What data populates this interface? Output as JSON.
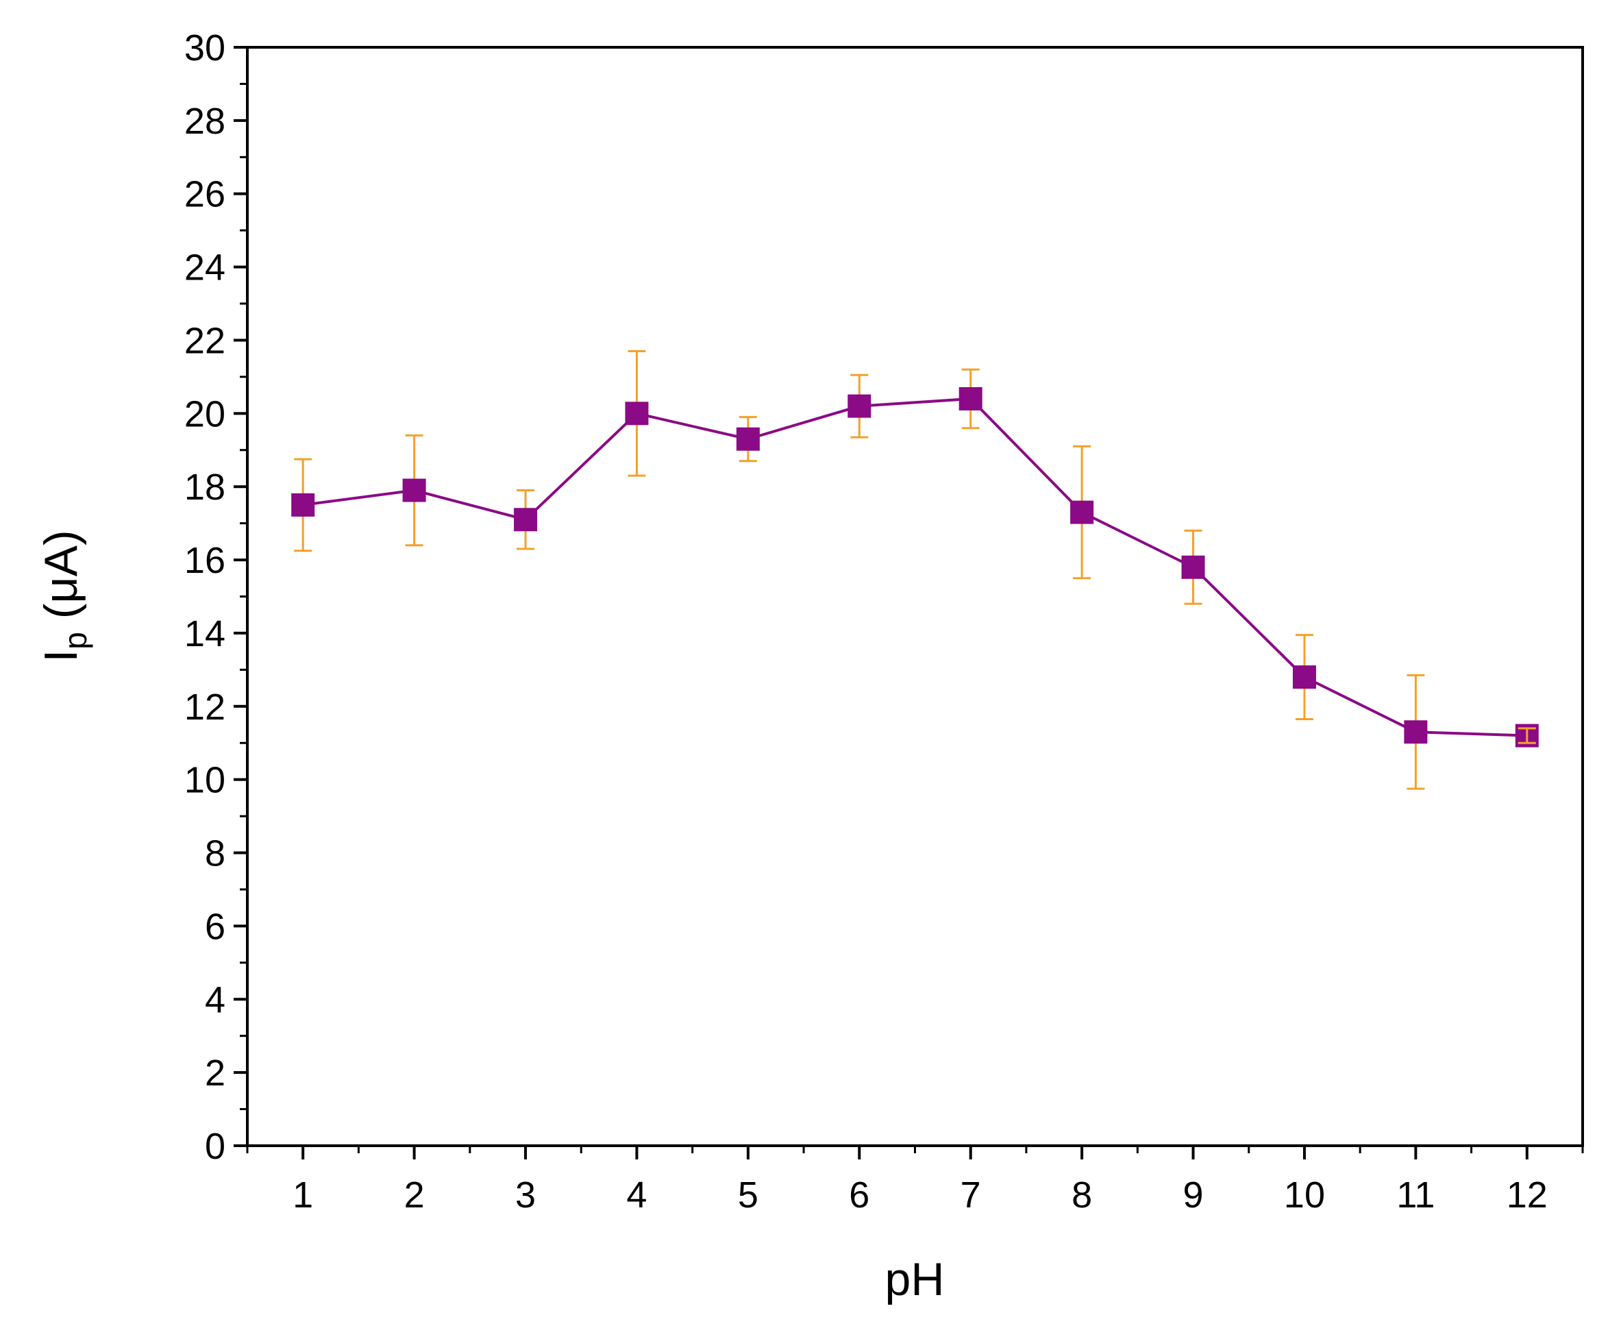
{
  "chart_data": {
    "type": "line",
    "title": "",
    "xlabel": "pH",
    "ylabel_main": "I",
    "ylabel_sub": "p",
    "ylabel_unit": " (μA)",
    "x": [
      1,
      2,
      3,
      4,
      5,
      6,
      7,
      8,
      9,
      10,
      11,
      12
    ],
    "x_tick_labels": [
      "1",
      "2",
      "3",
      "4",
      "5",
      "6",
      "7",
      "8",
      "9",
      "10",
      "11",
      "12"
    ],
    "y_tick_labels": [
      "0",
      "2",
      "4",
      "6",
      "8",
      "10",
      "12",
      "14",
      "16",
      "18",
      "20",
      "22",
      "24",
      "26",
      "28",
      "30"
    ],
    "xlim": [
      0.5,
      12.5
    ],
    "ylim": [
      0,
      30
    ],
    "grid": false,
    "series": [
      {
        "values": [
          17.5,
          17.9,
          17.1,
          20.0,
          19.3,
          20.2,
          20.4,
          17.3,
          15.8,
          12.8,
          11.3,
          11.2
        ],
        "errors": [
          1.25,
          1.5,
          0.8,
          1.7,
          0.6,
          0.85,
          0.8,
          1.8,
          1.0,
          1.15,
          1.55,
          0.2
        ]
      }
    ],
    "colors": {
      "line": "#8b0a86",
      "marker": "#8b0a86",
      "error_bar": "#f5a02a",
      "axis": "#000000"
    }
  }
}
